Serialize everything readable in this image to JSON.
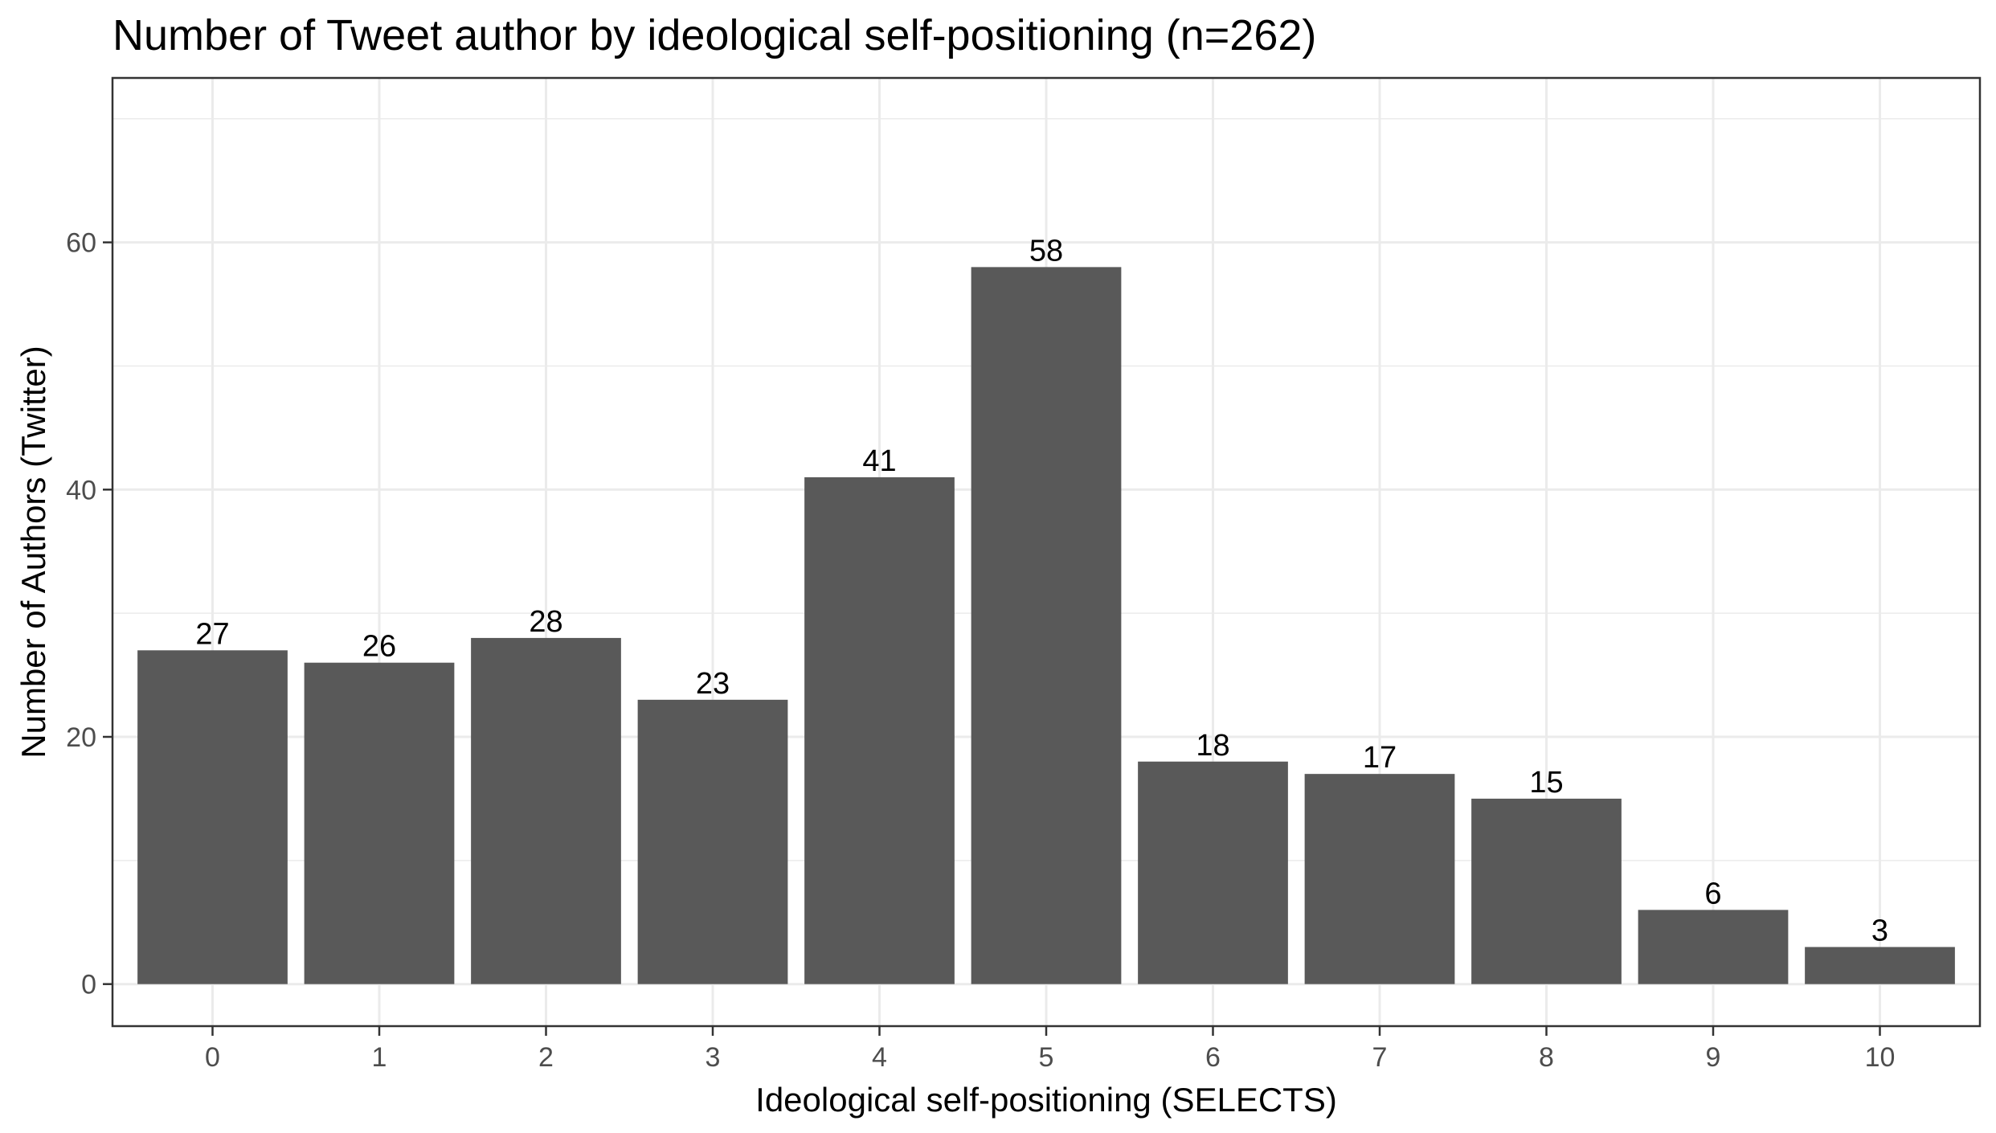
{
  "chart_data": {
    "type": "bar",
    "title": "Number of Tweet author by ideological self-positioning (n=262)",
    "xlabel": "Ideological self-positioning (SELECTS)",
    "ylabel": "Number of Authors (Twitter)",
    "categories": [
      "0",
      "1",
      "2",
      "3",
      "4",
      "5",
      "6",
      "7",
      "8",
      "9",
      "10"
    ],
    "values": [
      27,
      26,
      28,
      23,
      41,
      58,
      18,
      17,
      15,
      6,
      3
    ],
    "data_labels": [
      "27",
      "26",
      "28",
      "23",
      "41",
      "58",
      "18",
      "17",
      "15",
      "6",
      "3"
    ],
    "ylim": [
      -3.4,
      73.3
    ],
    "yticks": [
      0,
      20,
      40,
      60
    ],
    "ytick_labels": [
      "0",
      "20",
      "40",
      "60"
    ],
    "grid": true,
    "bar_color": "#595959",
    "legend": "none"
  }
}
